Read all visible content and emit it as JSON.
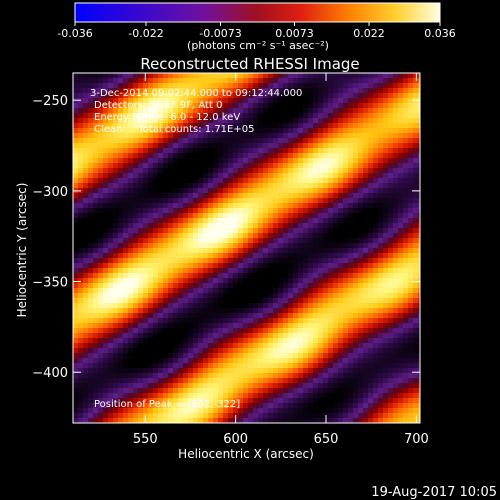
{
  "colorbar": {
    "ticks": [
      "-0.036",
      "-0.022",
      "-0.0073",
      "0.0073",
      "0.022",
      "0.036"
    ],
    "unit_label": "(photons cm⁻² s⁻¹ asec⁻²)",
    "range": [
      -0.036,
      0.036
    ]
  },
  "chart_data": {
    "type": "heatmap",
    "title": "Reconstructed RHESSI Image",
    "xlabel": "Heliocentric X (arcsec)",
    "ylabel": "Heliocentric Y (arcsec)",
    "xlim": [
      510,
      702
    ],
    "ylim": [
      -428,
      -235
    ],
    "xticks": [
      550,
      600,
      650,
      700
    ],
    "yticks": [
      -250,
      -300,
      -350,
      -400
    ],
    "value_range": [
      -0.036,
      0.036
    ],
    "colormap": "RHESSI red-temperature (black-purple-red-orange-yellow-white)",
    "peak": [
      602,
      -322
    ],
    "annotations": [
      "3-Dec-2014 09:02:44.000 to 09:12:44.000",
      "Detectors: 3F 6F 9F, Att 0",
      "Energy Range: 6.0 - 12.0 keV",
      "Clean     Total counts: 1.71E+05",
      "Position of Peak = [602,-322]"
    ]
  },
  "footer_timestamp": "19-Aug-2017 10:05"
}
